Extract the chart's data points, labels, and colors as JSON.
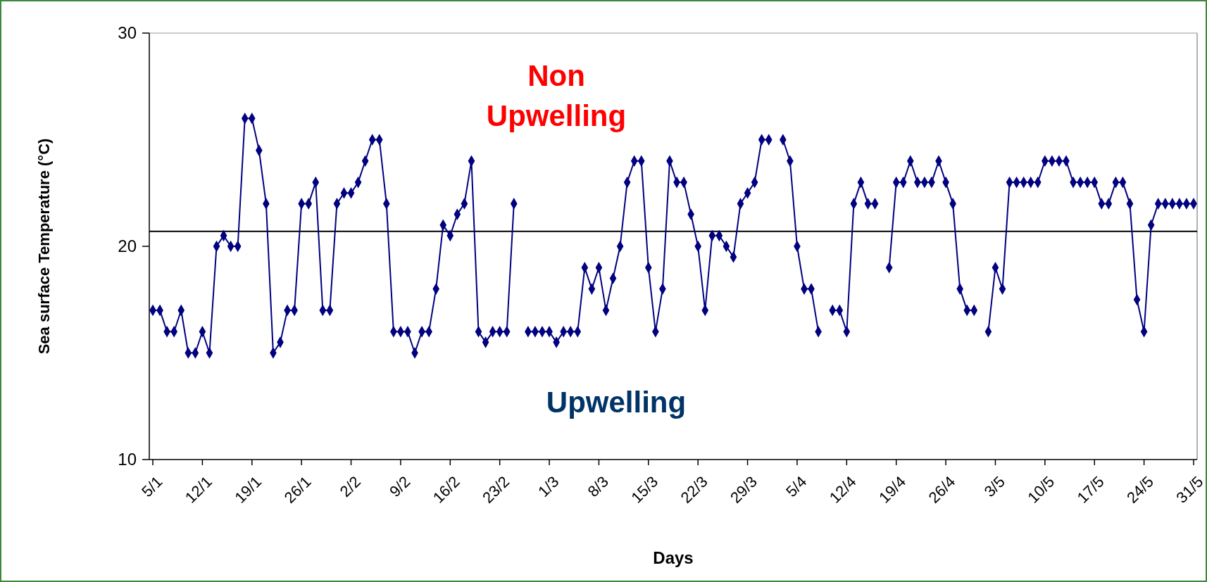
{
  "chart_data": {
    "type": "line",
    "xlabel": "Days",
    "ylabel": "Sea surface Temperature (°C)",
    "categories": [
      "5/1",
      null,
      null,
      null,
      null,
      null,
      null,
      "12/1",
      null,
      null,
      null,
      null,
      null,
      null,
      "19/1",
      null,
      null,
      null,
      null,
      null,
      null,
      "26/1",
      null,
      null,
      null,
      null,
      null,
      null,
      "2/2",
      null,
      null,
      null,
      null,
      null,
      null,
      "9/2",
      null,
      null,
      null,
      null,
      null,
      null,
      "16/2",
      null,
      null,
      null,
      null,
      null,
      null,
      "23/2",
      null,
      null,
      null,
      null,
      null,
      null,
      "1/3",
      null,
      null,
      null,
      null,
      null,
      null,
      "8/3",
      null,
      null,
      null,
      null,
      null,
      null,
      "15/3",
      null,
      null,
      null,
      null,
      null,
      null,
      "22/3",
      null,
      null,
      null,
      null,
      null,
      null,
      "29/3",
      null,
      null,
      null,
      null,
      null,
      null,
      "5/4",
      null,
      null,
      null,
      null,
      null,
      null,
      "12/4",
      null,
      null,
      null,
      null,
      null,
      null,
      "19/4",
      null,
      null,
      null,
      null,
      null,
      null,
      "26/4",
      null,
      null,
      null,
      null,
      null,
      null,
      "3/5",
      null,
      null,
      null,
      null,
      null,
      null,
      "10/5",
      null,
      null,
      null,
      null,
      null,
      null,
      "17/5",
      null,
      null,
      null,
      null,
      null,
      null,
      "24/5",
      null,
      null,
      null,
      null,
      null,
      null,
      "31/5"
    ],
    "series": [
      {
        "color": "#000080",
        "values": [
          17,
          17,
          16,
          16,
          17,
          15,
          15,
          16,
          15,
          20,
          20.5,
          20,
          20,
          26,
          26,
          24.5,
          22,
          15,
          15.5,
          17,
          17,
          22,
          22,
          23,
          17,
          17,
          22,
          22.5,
          22.5,
          23,
          24,
          25,
          25,
          22,
          16,
          16,
          16,
          15,
          16,
          16,
          18,
          21,
          20.5,
          21.5,
          22,
          24,
          16,
          15.5,
          16,
          16,
          16,
          22,
          null,
          16,
          16,
          16,
          16,
          15.5,
          16,
          16,
          16,
          19,
          18,
          19,
          17,
          18.5,
          20,
          23,
          24,
          24,
          19,
          16,
          18,
          24,
          23,
          23,
          21.5,
          20,
          17,
          20.5,
          20.5,
          20,
          19.5,
          22,
          22.5,
          23,
          25,
          25,
          null,
          25,
          24,
          20,
          18,
          18,
          16,
          null,
          17,
          17,
          16,
          22,
          23,
          22,
          22,
          null,
          19,
          23,
          23,
          24,
          23,
          23,
          23,
          24,
          23,
          22,
          18,
          17,
          17,
          null,
          16,
          19,
          18,
          23,
          23,
          23,
          23,
          23,
          24,
          24,
          24,
          24,
          23,
          23,
          23,
          23,
          22,
          22,
          23,
          23,
          22,
          17.5,
          16,
          21,
          22,
          22,
          22,
          22,
          22,
          22
        ]
      }
    ],
    "ylim": [
      10,
      30
    ],
    "yticks": [
      10,
      20,
      30
    ],
    "grid": false,
    "marker": "diamond",
    "line_style": "solid",
    "ref_lines": [
      {
        "axis": "y",
        "value": 20.7,
        "color": "#000000"
      }
    ],
    "annotations": [
      "Non\nUpwelling",
      "Upwelling"
    ]
  }
}
